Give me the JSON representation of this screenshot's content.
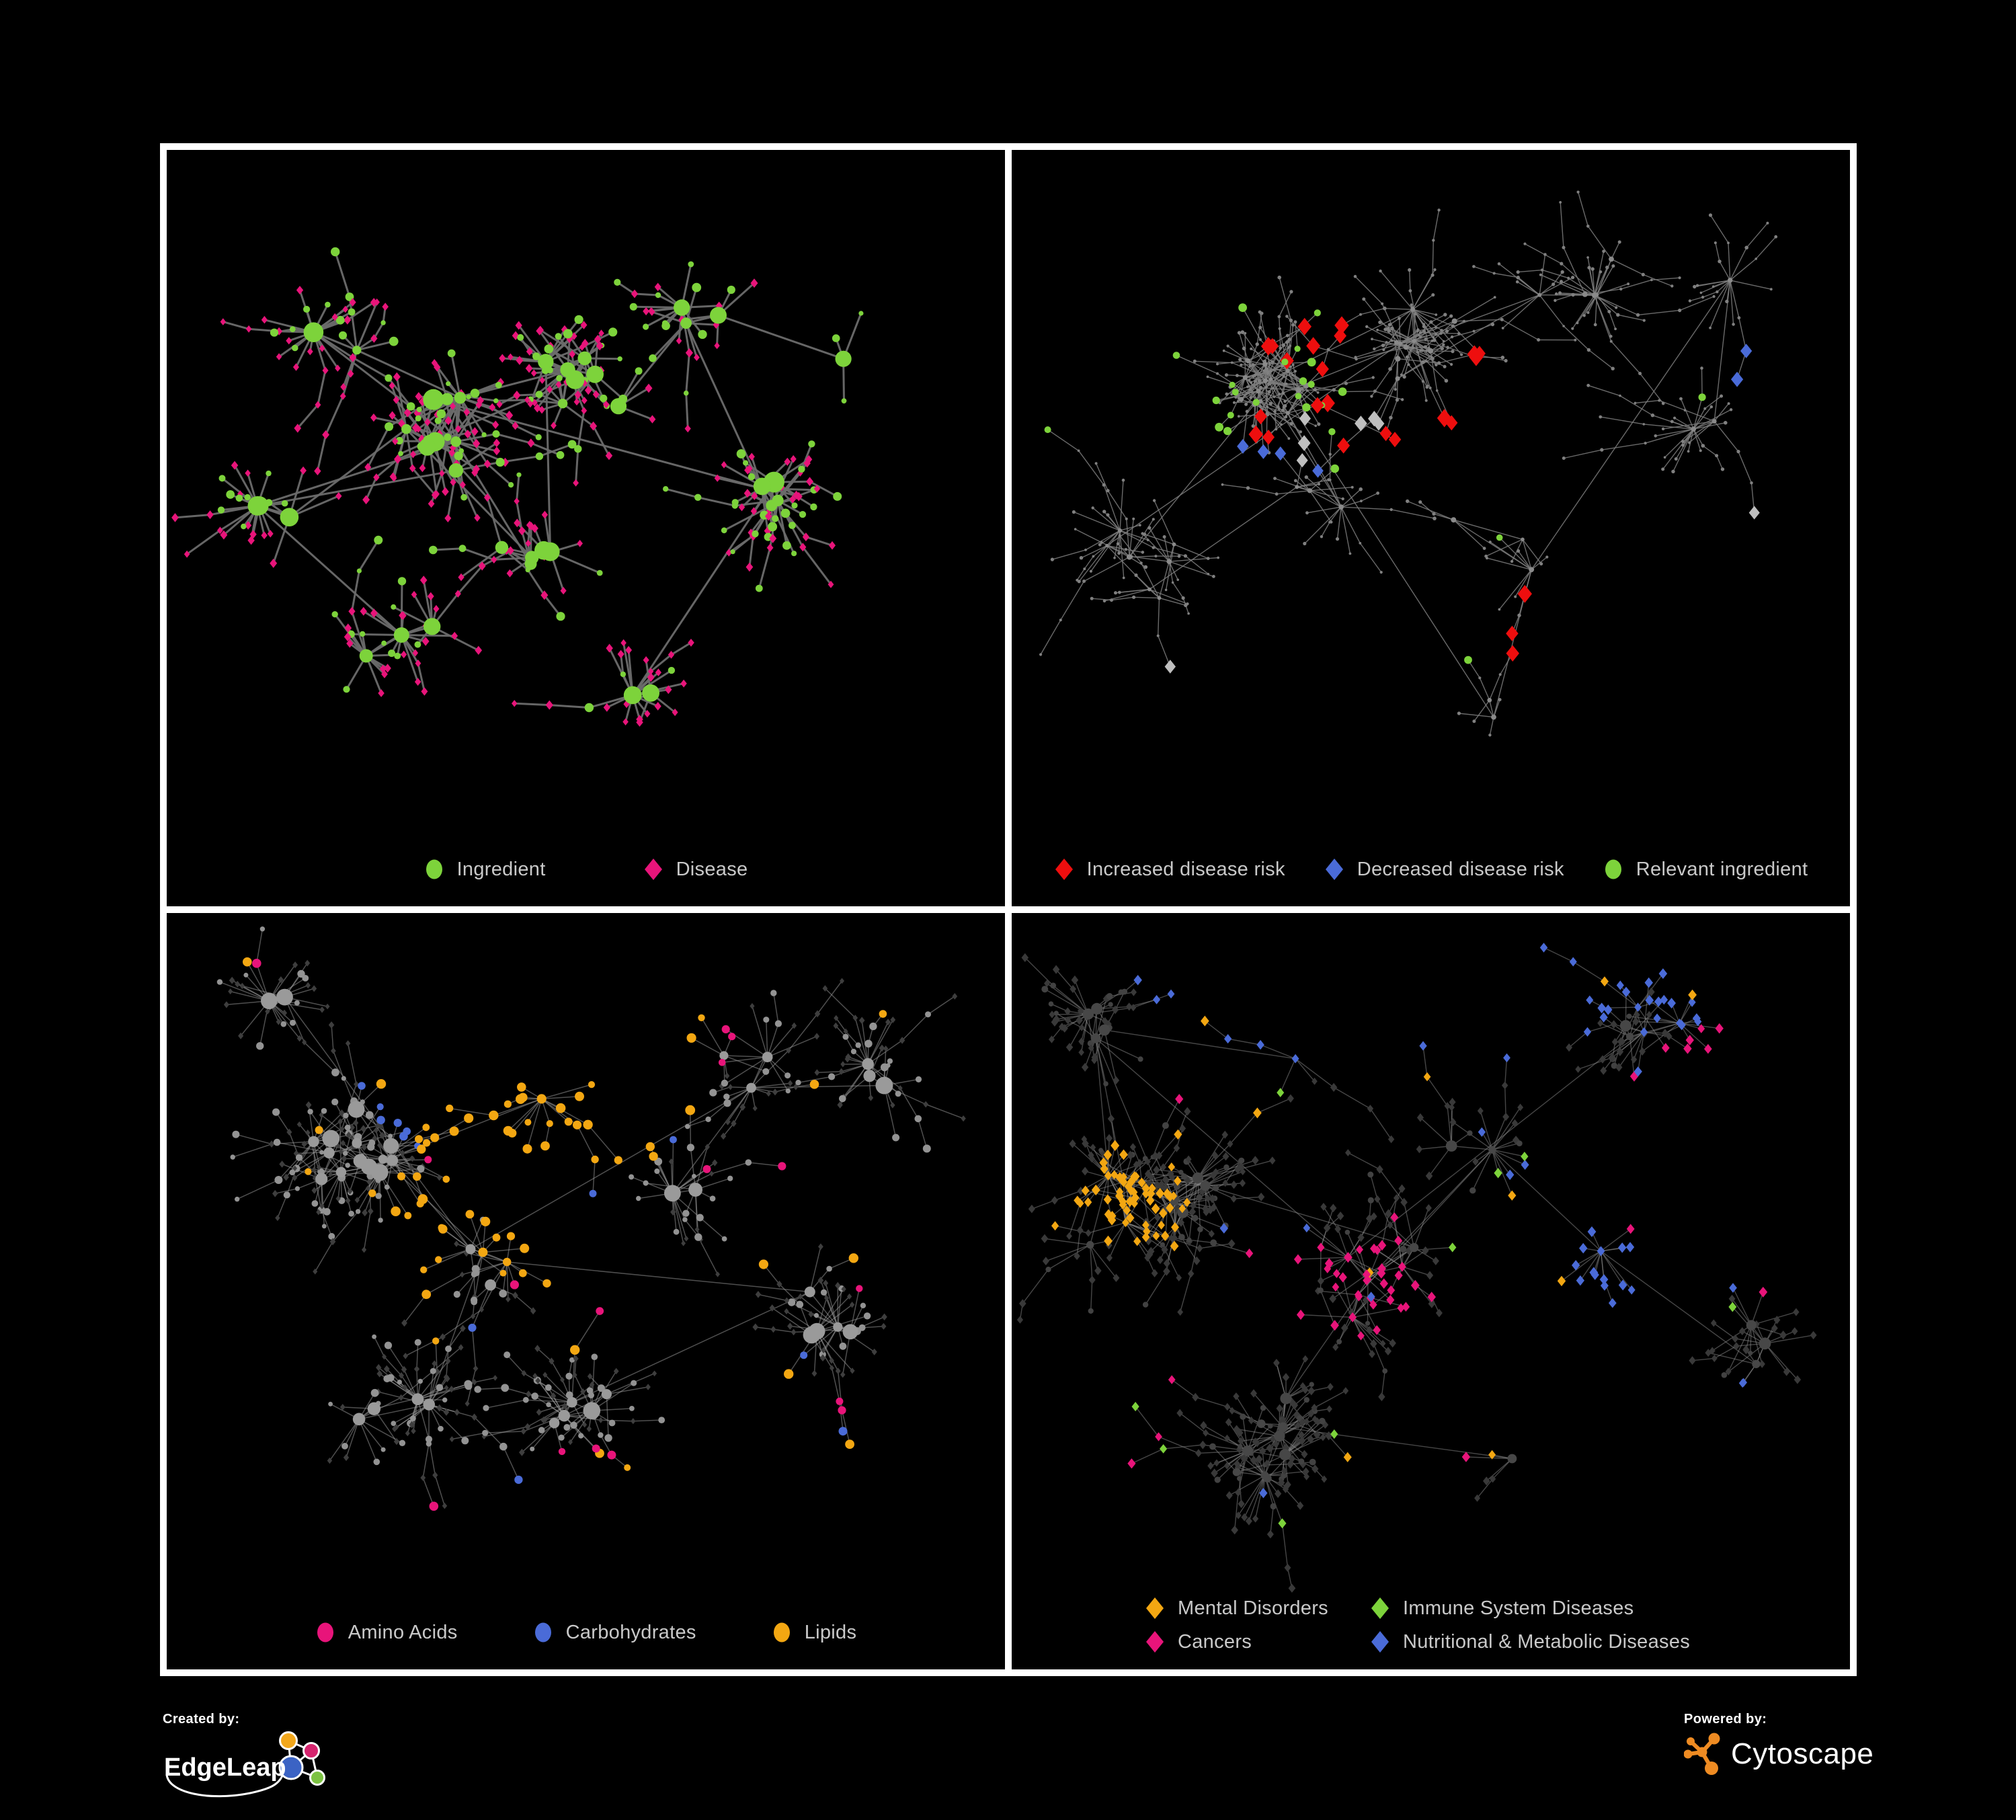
{
  "figure": {
    "background": "#000000",
    "frame_color": "#FFFFFF"
  },
  "panels": [
    {
      "name": "ingredient-disease",
      "legend_columns": 1,
      "legend": [
        {
          "label": "Ingredient",
          "shape": "circle",
          "color": "#7DD33B"
        },
        {
          "label": "Disease",
          "shape": "diamond",
          "color": "#E8147A"
        }
      ],
      "network": {
        "seed": 101,
        "hubs": 40,
        "max_leaves": 18,
        "leaf_radius": 0.052,
        "chain_p": 0.3,
        "clusters": [
          [
            0.33,
            0.4,
            3,
            0.06
          ],
          [
            0.5,
            0.33,
            2,
            0.05
          ],
          [
            0.43,
            0.57,
            2,
            0.07
          ],
          [
            0.22,
            0.26,
            1,
            0.05
          ],
          [
            0.66,
            0.24,
            1.2,
            0.06
          ],
          [
            0.72,
            0.52,
            1,
            0.06
          ],
          [
            0.28,
            0.72,
            1,
            0.06
          ],
          [
            0.55,
            0.8,
            0.8,
            0.05
          ],
          [
            0.82,
            0.3,
            0.6,
            0.04
          ],
          [
            0.12,
            0.5,
            0.6,
            0.05
          ]
        ],
        "edge": {
          "color": "#6C6C6C",
          "opacity": 0.95,
          "width": 3
        },
        "base": {
          "hub": [
            {
              "w": 1,
              "shape": "circle",
              "color": "#7DD33B",
              "r": [
                6.5,
                16
              ]
            }
          ],
          "leaf": [
            {
              "w": 0.68,
              "shape": "diamond",
              "color": "#E8147A",
              "r": [
                4.2,
                5.6
              ]
            },
            {
              "w": 0.32,
              "shape": "circle",
              "color": "#7DD33B",
              "r": [
                3.5,
                7
              ]
            }
          ]
        },
        "highlights": []
      }
    },
    {
      "name": "disease-risk",
      "legend_columns": 1,
      "legend": [
        {
          "label": "Increased disease risk",
          "shape": "diamond",
          "color": "#EE0E0E"
        },
        {
          "label": "Decreased disease risk",
          "shape": "diamond",
          "color": "#4A6BD8"
        },
        {
          "label": "Relevant ingredient",
          "shape": "circle",
          "color": "#7DD33B"
        }
      ],
      "network": {
        "seed": 202,
        "hubs": 46,
        "max_leaves": 18,
        "leaf_radius": 0.05,
        "chain_p": 0.45,
        "clusters": [
          [
            0.3,
            0.34,
            3,
            0.07
          ],
          [
            0.47,
            0.28,
            2,
            0.06
          ],
          [
            0.38,
            0.52,
            1.5,
            0.07
          ],
          [
            0.17,
            0.58,
            1,
            0.06
          ],
          [
            0.6,
            0.58,
            1,
            0.07
          ],
          [
            0.7,
            0.2,
            1,
            0.07
          ],
          [
            0.25,
            0.14,
            0.9,
            0.05
          ],
          [
            0.82,
            0.42,
            0.8,
            0.05
          ],
          [
            0.55,
            0.8,
            0.8,
            0.05
          ],
          [
            0.88,
            0.2,
            0.5,
            0.04
          ]
        ],
        "edge": {
          "color": "#7D7D7D",
          "opacity": 0.85,
          "width": 1.4
        },
        "base": {
          "hub": [
            {
              "w": 1,
              "shape": "circle",
              "color": "#8A8A8A",
              "r": [
                2.6,
                4.2
              ]
            }
          ],
          "leaf": [
            {
              "w": 1,
              "shape": "circle",
              "color": "#808080",
              "r": [
                1.8,
                2.8
              ]
            }
          ]
        },
        "highlights": [
          {
            "shape": "diamond",
            "color": "#EE0E0E",
            "r": [
              9,
              11
            ],
            "clusters": [
              [
                0.33,
                0.33,
                0.1,
                13
              ],
              [
                0.47,
                0.43,
                0.07,
                5
              ],
              [
                0.79,
                0.74,
                0.03,
                2
              ],
              [
                0.58,
                0.27,
                0.04,
                3
              ]
            ],
            "scattered": 1
          },
          {
            "shape": "diamond",
            "color": "#4A6BD8",
            "r": [
              8,
              9.5
            ],
            "clusters": [
              [
                0.28,
                0.44,
                0.04,
                3
              ],
              [
                0.91,
                0.34,
                0.015,
                2
              ]
            ],
            "scattered": 1
          },
          {
            "shape": "circle",
            "color": "#7DD33B",
            "r": [
              4.5,
              6.5
            ],
            "clusters": [
              [
                0.31,
                0.36,
                0.12,
                18
              ]
            ],
            "scattered": 7
          },
          {
            "shape": "diamond",
            "color": "#BFBFBF",
            "r": [
              8,
              9.5
            ],
            "clusters": [
              [
                0.41,
                0.43,
                0.1,
                6
              ]
            ],
            "scattered": 2
          }
        ]
      }
    },
    {
      "name": "macronutrient-classes",
      "legend_columns": 1,
      "legend": [
        {
          "label": "Amino Acids",
          "shape": "circle",
          "color": "#E8147A"
        },
        {
          "label": "Carbohydrates",
          "shape": "circle",
          "color": "#4A6BD8"
        },
        {
          "label": "Lipids",
          "shape": "circle",
          "color": "#F3A712"
        }
      ],
      "network": {
        "seed": 303,
        "hubs": 42,
        "max_leaves": 20,
        "leaf_radius": 0.052,
        "chain_p": 0.3,
        "clusters": [
          [
            0.22,
            0.34,
            3,
            0.06
          ],
          [
            0.44,
            0.23,
            2,
            0.06
          ],
          [
            0.35,
            0.5,
            1.6,
            0.07
          ],
          [
            0.6,
            0.44,
            1,
            0.06
          ],
          [
            0.25,
            0.7,
            1,
            0.06
          ],
          [
            0.68,
            0.22,
            1,
            0.06
          ],
          [
            0.5,
            0.73,
            0.9,
            0.05
          ],
          [
            0.78,
            0.58,
            0.7,
            0.05
          ],
          [
            0.14,
            0.14,
            0.6,
            0.05
          ],
          [
            0.85,
            0.25,
            0.5,
            0.04
          ]
        ],
        "edge": {
          "color": "#9E9E9E",
          "opacity": 0.5,
          "width": 1.5
        },
        "base": {
          "hub": [
            {
              "w": 1,
              "shape": "circle",
              "color": "#9A9A9A",
              "r": [
                6,
                13
              ]
            }
          ],
          "leaf": [
            {
              "w": 0.55,
              "shape": "diamond",
              "color": "#3E3E3E",
              "r": [
                3.4,
                4.4
              ]
            },
            {
              "w": 0.45,
              "shape": "circle",
              "color": "#939393",
              "r": [
                3.4,
                6
              ]
            }
          ]
        },
        "highlights": [
          {
            "shape": "circle",
            "color": "#F3A712",
            "r": [
              5,
              7.5
            ],
            "clusters": [
              [
                0.45,
                0.21,
                0.06,
                32
              ],
              [
                0.3,
                0.42,
                0.1,
                12
              ],
              [
                0.42,
                0.48,
                0.05,
                8
              ]
            ],
            "scattered": 18
          },
          {
            "shape": "circle",
            "color": "#4A6BD8",
            "r": [
              5,
              6.5
            ],
            "clusters": [
              [
                0.43,
                0.19,
                0.05,
                8
              ]
            ],
            "scattered": 5
          },
          {
            "shape": "circle",
            "color": "#E8147A",
            "r": [
              5,
              7
            ],
            "clusters": [],
            "scattered": 16
          }
        ]
      }
    },
    {
      "name": "disease-classes",
      "legend_columns": 2,
      "legend": [
        {
          "label": "Mental Disorders",
          "shape": "diamond",
          "color": "#F3A712"
        },
        {
          "label": "Immune System Diseases",
          "shape": "diamond",
          "color": "#7DD33B"
        },
        {
          "label": "Cancers",
          "shape": "diamond",
          "color": "#E8147A"
        },
        {
          "label": "Nutritional & Metabolic Diseases",
          "shape": "diamond",
          "color": "#4A6BD8"
        }
      ],
      "network": {
        "seed": 404,
        "hubs": 46,
        "max_leaves": 20,
        "leaf_radius": 0.05,
        "chain_p": 0.3,
        "clusters": [
          [
            0.16,
            0.42,
            2.5,
            0.07
          ],
          [
            0.42,
            0.5,
            2,
            0.08
          ],
          [
            0.55,
            0.3,
            1.5,
            0.07
          ],
          [
            0.7,
            0.5,
            1,
            0.06
          ],
          [
            0.35,
            0.18,
            1,
            0.06
          ],
          [
            0.75,
            0.16,
            1,
            0.06
          ],
          [
            0.3,
            0.76,
            1,
            0.06
          ],
          [
            0.6,
            0.78,
            0.8,
            0.05
          ],
          [
            0.88,
            0.6,
            0.6,
            0.05
          ],
          [
            0.1,
            0.15,
            0.6,
            0.05
          ]
        ],
        "edge": {
          "color": "#8C8C8C",
          "opacity": 0.5,
          "width": 1.4
        },
        "base": {
          "hub": [
            {
              "w": 1,
              "shape": "circle",
              "color": "#474747",
              "r": [
                5,
                9
              ]
            }
          ],
          "leaf": [
            {
              "w": 0.85,
              "shape": "diamond",
              "color": "#393939",
              "r": [
                4.3,
                5.4
              ]
            },
            {
              "w": 0.15,
              "shape": "circle",
              "color": "#424242",
              "r": [
                3.5,
                5
              ]
            }
          ]
        },
        "highlights": [
          {
            "shape": "diamond",
            "color": "#F3A712",
            "r": [
              5.3,
              6.5
            ],
            "clusters": [
              [
                0.14,
                0.42,
                0.075,
                62
              ]
            ],
            "scattered": 12
          },
          {
            "shape": "diamond",
            "color": "#E8147A",
            "r": [
              5.3,
              6.5
            ],
            "clusters": [
              [
                0.43,
                0.53,
                0.09,
                38
              ],
              [
                0.88,
                0.28,
                0.03,
                6
              ]
            ],
            "scattered": 9
          },
          {
            "shape": "diamond",
            "color": "#4A6BD8",
            "r": [
              5.3,
              6.5
            ],
            "clusters": [
              [
                0.68,
                0.52,
                0.05,
                15
              ],
              [
                0.78,
                0.13,
                0.06,
                14
              ],
              [
                0.57,
                0.06,
                0.05,
                8
              ],
              [
                0.3,
                0.06,
                0.04,
                5
              ]
            ],
            "scattered": 14
          },
          {
            "shape": "diamond",
            "color": "#7DD33B",
            "r": [
              5.3,
              6.5
            ],
            "clusters": [],
            "scattered": 9
          }
        ]
      }
    }
  ],
  "footer": {
    "created_by": "Created by:",
    "edgeleap_name": "EdgeLeap",
    "powered_by": "Powered by:",
    "cytoscape_name": "Cytoscape",
    "edgeleap_colors": {
      "orange": "#F2A71B",
      "pink": "#D6246E",
      "blue": "#3B63C4",
      "green": "#7CC242"
    },
    "cytoscape_orange": "#EE8B22"
  }
}
